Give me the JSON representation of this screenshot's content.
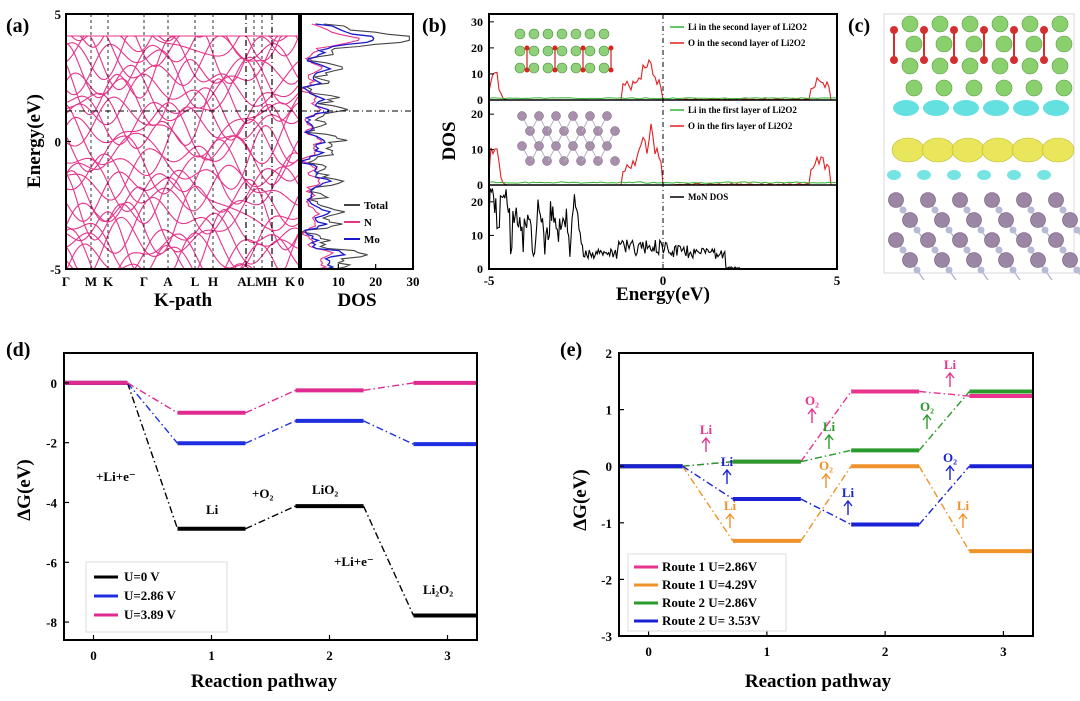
{
  "colors": {
    "total": "#444444",
    "n": "#e6338a",
    "mo": "#1a1acc",
    "green": "#32b432",
    "red": "#e02020",
    "black": "#000000",
    "u0": "#000000",
    "u286": "#1f2fe0",
    "u389": "#e02a8f",
    "r1a": "#e8338f",
    "r1b": "#f0922a",
    "r2a": "#2a9a2a",
    "r2b": "#1a22d6"
  },
  "panel_a": {
    "label": "(a)",
    "ylabel": "Energy(eV)",
    "xlabel": "K-path",
    "kpoints": [
      "Γ",
      "M",
      "K",
      "Γ",
      "A",
      "L",
      "H",
      "A",
      "L",
      "M",
      "H",
      "K"
    ],
    "kpoint_display": [
      "Γ",
      "M",
      "K",
      "Γ",
      "A",
      "L",
      "H",
      "A",
      "LM",
      "H",
      "K"
    ],
    "ylim": [
      -5,
      5
    ],
    "yticks": [
      "5",
      "0",
      "-5"
    ],
    "dos_xlabel": "DOS",
    "dos_xticks": [
      "0",
      "10",
      "20",
      "30"
    ],
    "dos_xlim": [
      0,
      30
    ],
    "legend": [
      "Total",
      "N",
      "Mo"
    ]
  },
  "panel_b": {
    "label": "(b)",
    "ylabel": "DOS",
    "xlabel": "Energy(eV)",
    "xticks": [
      "-5",
      "0",
      "5"
    ],
    "xlim": [
      -5,
      5
    ],
    "top": {
      "yticks": [
        "0",
        "10",
        "20",
        "30"
      ],
      "legend": [
        "Li in the second layer of Li2O2",
        "O in the second layer of Li2O2"
      ]
    },
    "mid": {
      "yticks": [
        "0",
        "10",
        "20"
      ],
      "legend": [
        "Li in the first layer of Li2O2",
        "O in the firs layer of Li2O2"
      ]
    },
    "bot": {
      "yticks": [
        "0",
        "10",
        "20"
      ],
      "legend": [
        "MoN DOS"
      ]
    }
  },
  "panel_c": {
    "label": "(c)"
  },
  "chart_data": [
    {
      "type": "line",
      "panel": "d",
      "label": "(d)",
      "ylabel": "ΔG(eV)",
      "xlabel": "Reaction pathway",
      "xticks": [
        "0",
        "1",
        "2",
        "3"
      ],
      "yticks": [
        "0",
        "-2",
        "-4",
        "-6",
        "-8"
      ],
      "xlim": [
        -0.25,
        3.25
      ],
      "ylim": [
        -8.6,
        1.0
      ],
      "steps": [
        0,
        1,
        2,
        3
      ],
      "series": [
        {
          "name": "U=0 V",
          "values": [
            0,
            -4.88,
            -4.12,
            -7.78
          ]
        },
        {
          "name": "U=2.86 V",
          "values": [
            0,
            -2.02,
            -1.27,
            -2.05
          ]
        },
        {
          "name": "U=3.89 V",
          "values": [
            0,
            -1.0,
            -0.25,
            0.0
          ]
        }
      ],
      "annotations": [
        "+Li+e⁻",
        "Li",
        "+O₂",
        "LiO₂",
        "+Li+e⁻",
        "Li₂O₂"
      ]
    },
    {
      "type": "line",
      "panel": "e",
      "label": "(e)",
      "ylabel": "ΔG(eV)",
      "xlabel": "Reaction pathway",
      "xticks": [
        "0",
        "1",
        "2",
        "3"
      ],
      "yticks": [
        "2",
        "1",
        "0",
        "-1",
        "-2",
        "-3"
      ],
      "xlim": [
        -0.25,
        3.25
      ],
      "ylim": [
        -3,
        2
      ],
      "steps": [
        0,
        1,
        2,
        3
      ],
      "series": [
        {
          "name": "Route 1 U=2.86V",
          "values": [
            0,
            0.08,
            1.32,
            1.24
          ]
        },
        {
          "name": "Route 1 U=4.29V",
          "values": [
            0,
            -1.32,
            0.0,
            -1.5
          ]
        },
        {
          "name": "Route 2 U=2.86V",
          "values": [
            0,
            0.08,
            0.28,
            1.32
          ]
        },
        {
          "name": "Route 2 U= 3.53V",
          "values": [
            0,
            -0.58,
            -1.03,
            0.0
          ]
        }
      ],
      "annotations": [
        {
          "text": "Li",
          "series": 0
        },
        {
          "text": "Li",
          "series": 3
        },
        {
          "text": "Li",
          "series": 1
        },
        {
          "text": "O₂",
          "series": 0
        },
        {
          "text": "Li",
          "series": 2
        },
        {
          "text": "O₂",
          "series": 1
        },
        {
          "text": "Li",
          "series": 3
        },
        {
          "text": "Li",
          "series": 0
        },
        {
          "text": "O₂",
          "series": 2
        },
        {
          "text": "O₂",
          "series": 3
        },
        {
          "text": "Li",
          "series": 1
        }
      ]
    }
  ]
}
